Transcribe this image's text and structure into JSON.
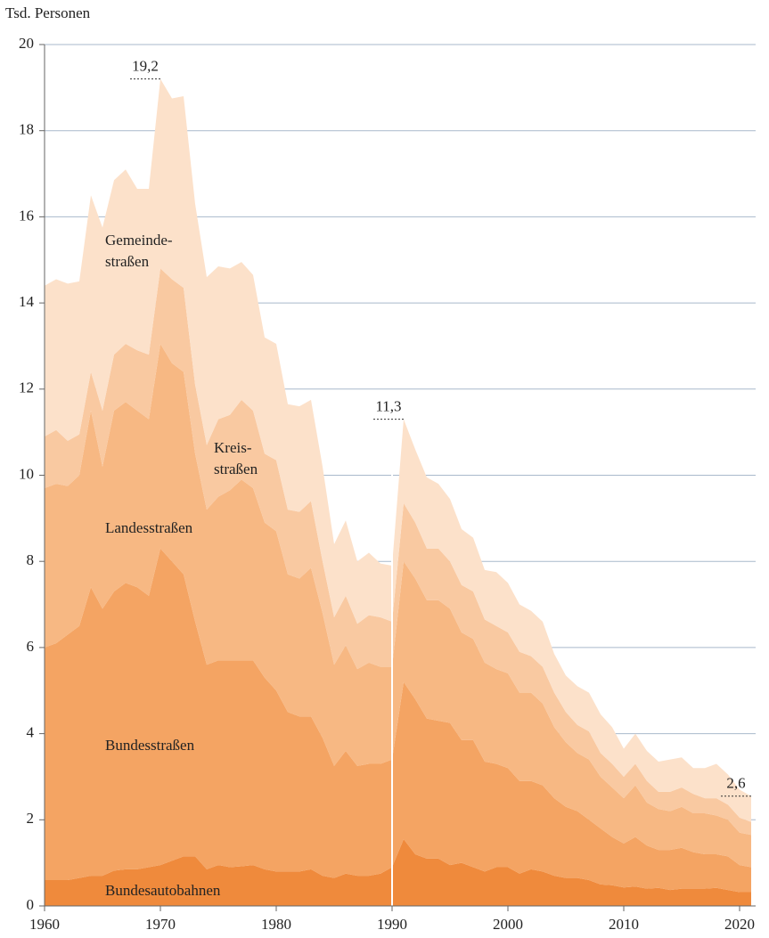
{
  "chart_data": {
    "type": "stacked_area",
    "y_axis_label": "Tsd. Personen",
    "x": [
      1960,
      1961,
      1962,
      1963,
      1964,
      1965,
      1966,
      1967,
      1968,
      1969,
      1970,
      1971,
      1972,
      1973,
      1974,
      1975,
      1976,
      1977,
      1978,
      1979,
      1980,
      1981,
      1982,
      1983,
      1984,
      1985,
      1986,
      1987,
      1988,
      1989,
      1990,
      1991,
      1992,
      1993,
      1994,
      1995,
      1996,
      1997,
      1998,
      1999,
      2000,
      2001,
      2002,
      2003,
      2004,
      2005,
      2006,
      2007,
      2008,
      2009,
      2010,
      2011,
      2012,
      2013,
      2014,
      2015,
      2016,
      2017,
      2018,
      2019,
      2020,
      2021
    ],
    "series": [
      {
        "name": "Bundesautobahnen",
        "color": "#ef8a3c",
        "values": [
          0.6,
          0.6,
          0.6,
          0.65,
          0.7,
          0.7,
          0.82,
          0.85,
          0.85,
          0.9,
          0.95,
          1.05,
          1.15,
          1.15,
          0.85,
          0.95,
          0.9,
          0.92,
          0.95,
          0.85,
          0.8,
          0.8,
          0.8,
          0.85,
          0.7,
          0.65,
          0.75,
          0.7,
          0.7,
          0.75,
          0.9,
          1.55,
          1.2,
          1.1,
          1.1,
          0.95,
          1.0,
          0.9,
          0.8,
          0.9,
          0.9,
          0.75,
          0.85,
          0.8,
          0.7,
          0.65,
          0.65,
          0.6,
          0.5,
          0.48,
          0.43,
          0.45,
          0.4,
          0.42,
          0.37,
          0.4,
          0.4,
          0.4,
          0.42,
          0.37,
          0.32,
          0.32
        ]
      },
      {
        "name": "Bundesstraßen",
        "color": "#f4a463",
        "values": [
          5.4,
          5.5,
          5.7,
          5.85,
          6.7,
          6.2,
          6.48,
          6.65,
          6.55,
          6.3,
          7.35,
          6.95,
          6.55,
          5.45,
          4.75,
          4.75,
          4.8,
          4.78,
          4.75,
          4.45,
          4.2,
          3.7,
          3.6,
          3.55,
          3.2,
          2.6,
          2.85,
          2.55,
          2.6,
          2.55,
          2.5,
          3.65,
          3.6,
          3.25,
          3.2,
          3.3,
          2.85,
          2.95,
          2.55,
          2.4,
          2.3,
          2.15,
          2.05,
          2.0,
          1.8,
          1.65,
          1.55,
          1.4,
          1.3,
          1.12,
          1.02,
          1.15,
          1.0,
          0.88,
          0.93,
          0.95,
          0.85,
          0.8,
          0.78,
          0.78,
          0.63,
          0.58
        ]
      },
      {
        "name": "Landesstraßen",
        "color": "#f7b883",
        "values": [
          3.7,
          3.7,
          3.45,
          3.5,
          4.1,
          3.3,
          4.2,
          4.2,
          4.1,
          4.1,
          4.75,
          4.6,
          4.7,
          3.9,
          3.6,
          3.8,
          3.95,
          4.2,
          4.0,
          3.6,
          3.7,
          3.2,
          3.2,
          3.45,
          2.9,
          2.35,
          2.45,
          2.25,
          2.35,
          2.25,
          2.15,
          2.8,
          2.8,
          2.75,
          2.8,
          2.65,
          2.5,
          2.35,
          2.3,
          2.2,
          2.2,
          2.05,
          2.05,
          1.9,
          1.65,
          1.5,
          1.35,
          1.4,
          1.2,
          1.15,
          1.05,
          1.2,
          1.0,
          0.95,
          0.9,
          0.95,
          0.9,
          0.95,
          0.9,
          0.85,
          0.75,
          0.75
        ]
      },
      {
        "name": "Kreis- straßen",
        "color": "#f9c9a1",
        "values": [
          1.2,
          1.25,
          1.05,
          0.95,
          0.9,
          1.3,
          1.3,
          1.35,
          1.4,
          1.5,
          1.75,
          1.95,
          1.95,
          1.6,
          1.5,
          1.8,
          1.75,
          1.85,
          1.8,
          1.6,
          1.65,
          1.5,
          1.55,
          1.55,
          1.2,
          1.1,
          1.15,
          1.05,
          1.1,
          1.15,
          1.05,
          1.35,
          1.3,
          1.2,
          1.2,
          1.1,
          1.1,
          1.1,
          1.0,
          1.0,
          0.95,
          0.95,
          0.85,
          0.85,
          0.8,
          0.7,
          0.65,
          0.65,
          0.55,
          0.55,
          0.5,
          0.5,
          0.5,
          0.4,
          0.45,
          0.45,
          0.45,
          0.35,
          0.4,
          0.35,
          0.35,
          0.3
        ]
      },
      {
        "name": "Gemeinde- straßen",
        "color": "#fce1ca",
        "values": [
          3.5,
          3.5,
          3.65,
          3.55,
          4.1,
          4.25,
          4.05,
          4.05,
          3.75,
          3.85,
          4.4,
          4.2,
          4.45,
          4.2,
          3.9,
          3.55,
          3.4,
          3.2,
          3.15,
          2.7,
          2.7,
          2.45,
          2.45,
          2.35,
          2.2,
          1.7,
          1.75,
          1.45,
          1.45,
          1.25,
          1.3,
          1.95,
          1.7,
          1.65,
          1.5,
          1.45,
          1.3,
          1.25,
          1.15,
          1.25,
          1.15,
          1.1,
          1.05,
          1.05,
          0.9,
          0.85,
          0.9,
          0.9,
          0.9,
          0.85,
          0.65,
          0.7,
          0.7,
          0.7,
          0.75,
          0.7,
          0.6,
          0.7,
          0.8,
          0.7,
          0.65,
          0.6
        ]
      }
    ],
    "annotations": [
      {
        "text": "19,2",
        "x": 1970,
        "y": 19.2
      },
      {
        "text": "11,3",
        "x": 1991,
        "y": 11.3
      },
      {
        "text": "2,6",
        "x": 2021,
        "y": 2.55
      }
    ],
    "separator": 1990,
    "xlim": [
      1960,
      2021
    ],
    "xticks": [
      1960,
      1970,
      1980,
      1990,
      2000,
      2010,
      2020
    ],
    "ylim": [
      0,
      20
    ],
    "yticks": [
      0,
      2,
      4,
      6,
      8,
      10,
      12,
      14,
      16,
      18,
      20
    ],
    "grid": true,
    "grid_color": "#a9b9cb"
  }
}
